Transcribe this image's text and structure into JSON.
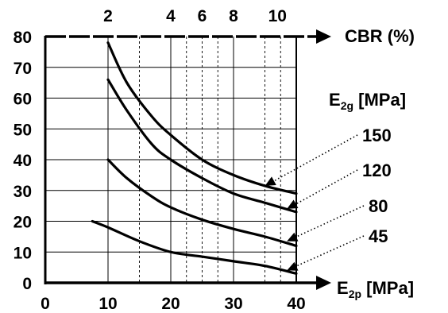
{
  "chart_data": {
    "type": "line",
    "x_axis": {
      "label_main": "E",
      "label_sub": "2p",
      "label_unit": "[MPa]",
      "range": [
        0,
        40
      ],
      "ticks": [
        0,
        10,
        20,
        30,
        40
      ]
    },
    "y_axis": {
      "range": [
        0,
        80
      ],
      "ticks": [
        0,
        10,
        20,
        30,
        40,
        50,
        60,
        70,
        80
      ]
    },
    "top_axis": {
      "label": "CBR (%)",
      "labeled_ticks": [
        {
          "label": "2",
          "x": 10
        },
        {
          "label": "4",
          "x": 20
        },
        {
          "label": "6",
          "x": 25
        },
        {
          "label": "8",
          "x": 30
        },
        {
          "label": "10",
          "x": 37
        }
      ],
      "dashed_lines_x": [
        15,
        20,
        22.5,
        25,
        27.5,
        30,
        35,
        37.5
      ]
    },
    "legend_title": {
      "main": "E",
      "sub": "2g",
      "unit": "[MPa]"
    },
    "grid": true,
    "series": [
      {
        "name": "150",
        "points": [
          [
            10,
            78
          ],
          [
            13,
            65
          ],
          [
            17,
            54
          ],
          [
            20,
            48
          ],
          [
            25,
            40
          ],
          [
            30,
            35
          ],
          [
            35,
            31.5
          ],
          [
            40,
            29
          ]
        ],
        "arrow_at": [
          35,
          31.5
        ]
      },
      {
        "name": "120",
        "points": [
          [
            10,
            66
          ],
          [
            13,
            56
          ],
          [
            17,
            45
          ],
          [
            20,
            40
          ],
          [
            25,
            34
          ],
          [
            30,
            29
          ],
          [
            35,
            26
          ],
          [
            40,
            23
          ]
        ],
        "arrow_at": [
          38.5,
          24
        ]
      },
      {
        "name": "80",
        "points": [
          [
            10,
            40
          ],
          [
            13,
            34
          ],
          [
            17,
            28
          ],
          [
            20,
            24.5
          ],
          [
            25,
            20.5
          ],
          [
            30,
            17.5
          ],
          [
            35,
            15
          ],
          [
            40,
            12
          ]
        ],
        "arrow_at": [
          38.5,
          13.5
        ]
      },
      {
        "name": "45",
        "points": [
          [
            7.5,
            20
          ],
          [
            10,
            18
          ],
          [
            15,
            13.5
          ],
          [
            20,
            10
          ],
          [
            25,
            8.5
          ],
          [
            30,
            7
          ],
          [
            35,
            5.5
          ],
          [
            40,
            3
          ]
        ],
        "arrow_at": [
          38.5,
          4
        ]
      }
    ]
  }
}
